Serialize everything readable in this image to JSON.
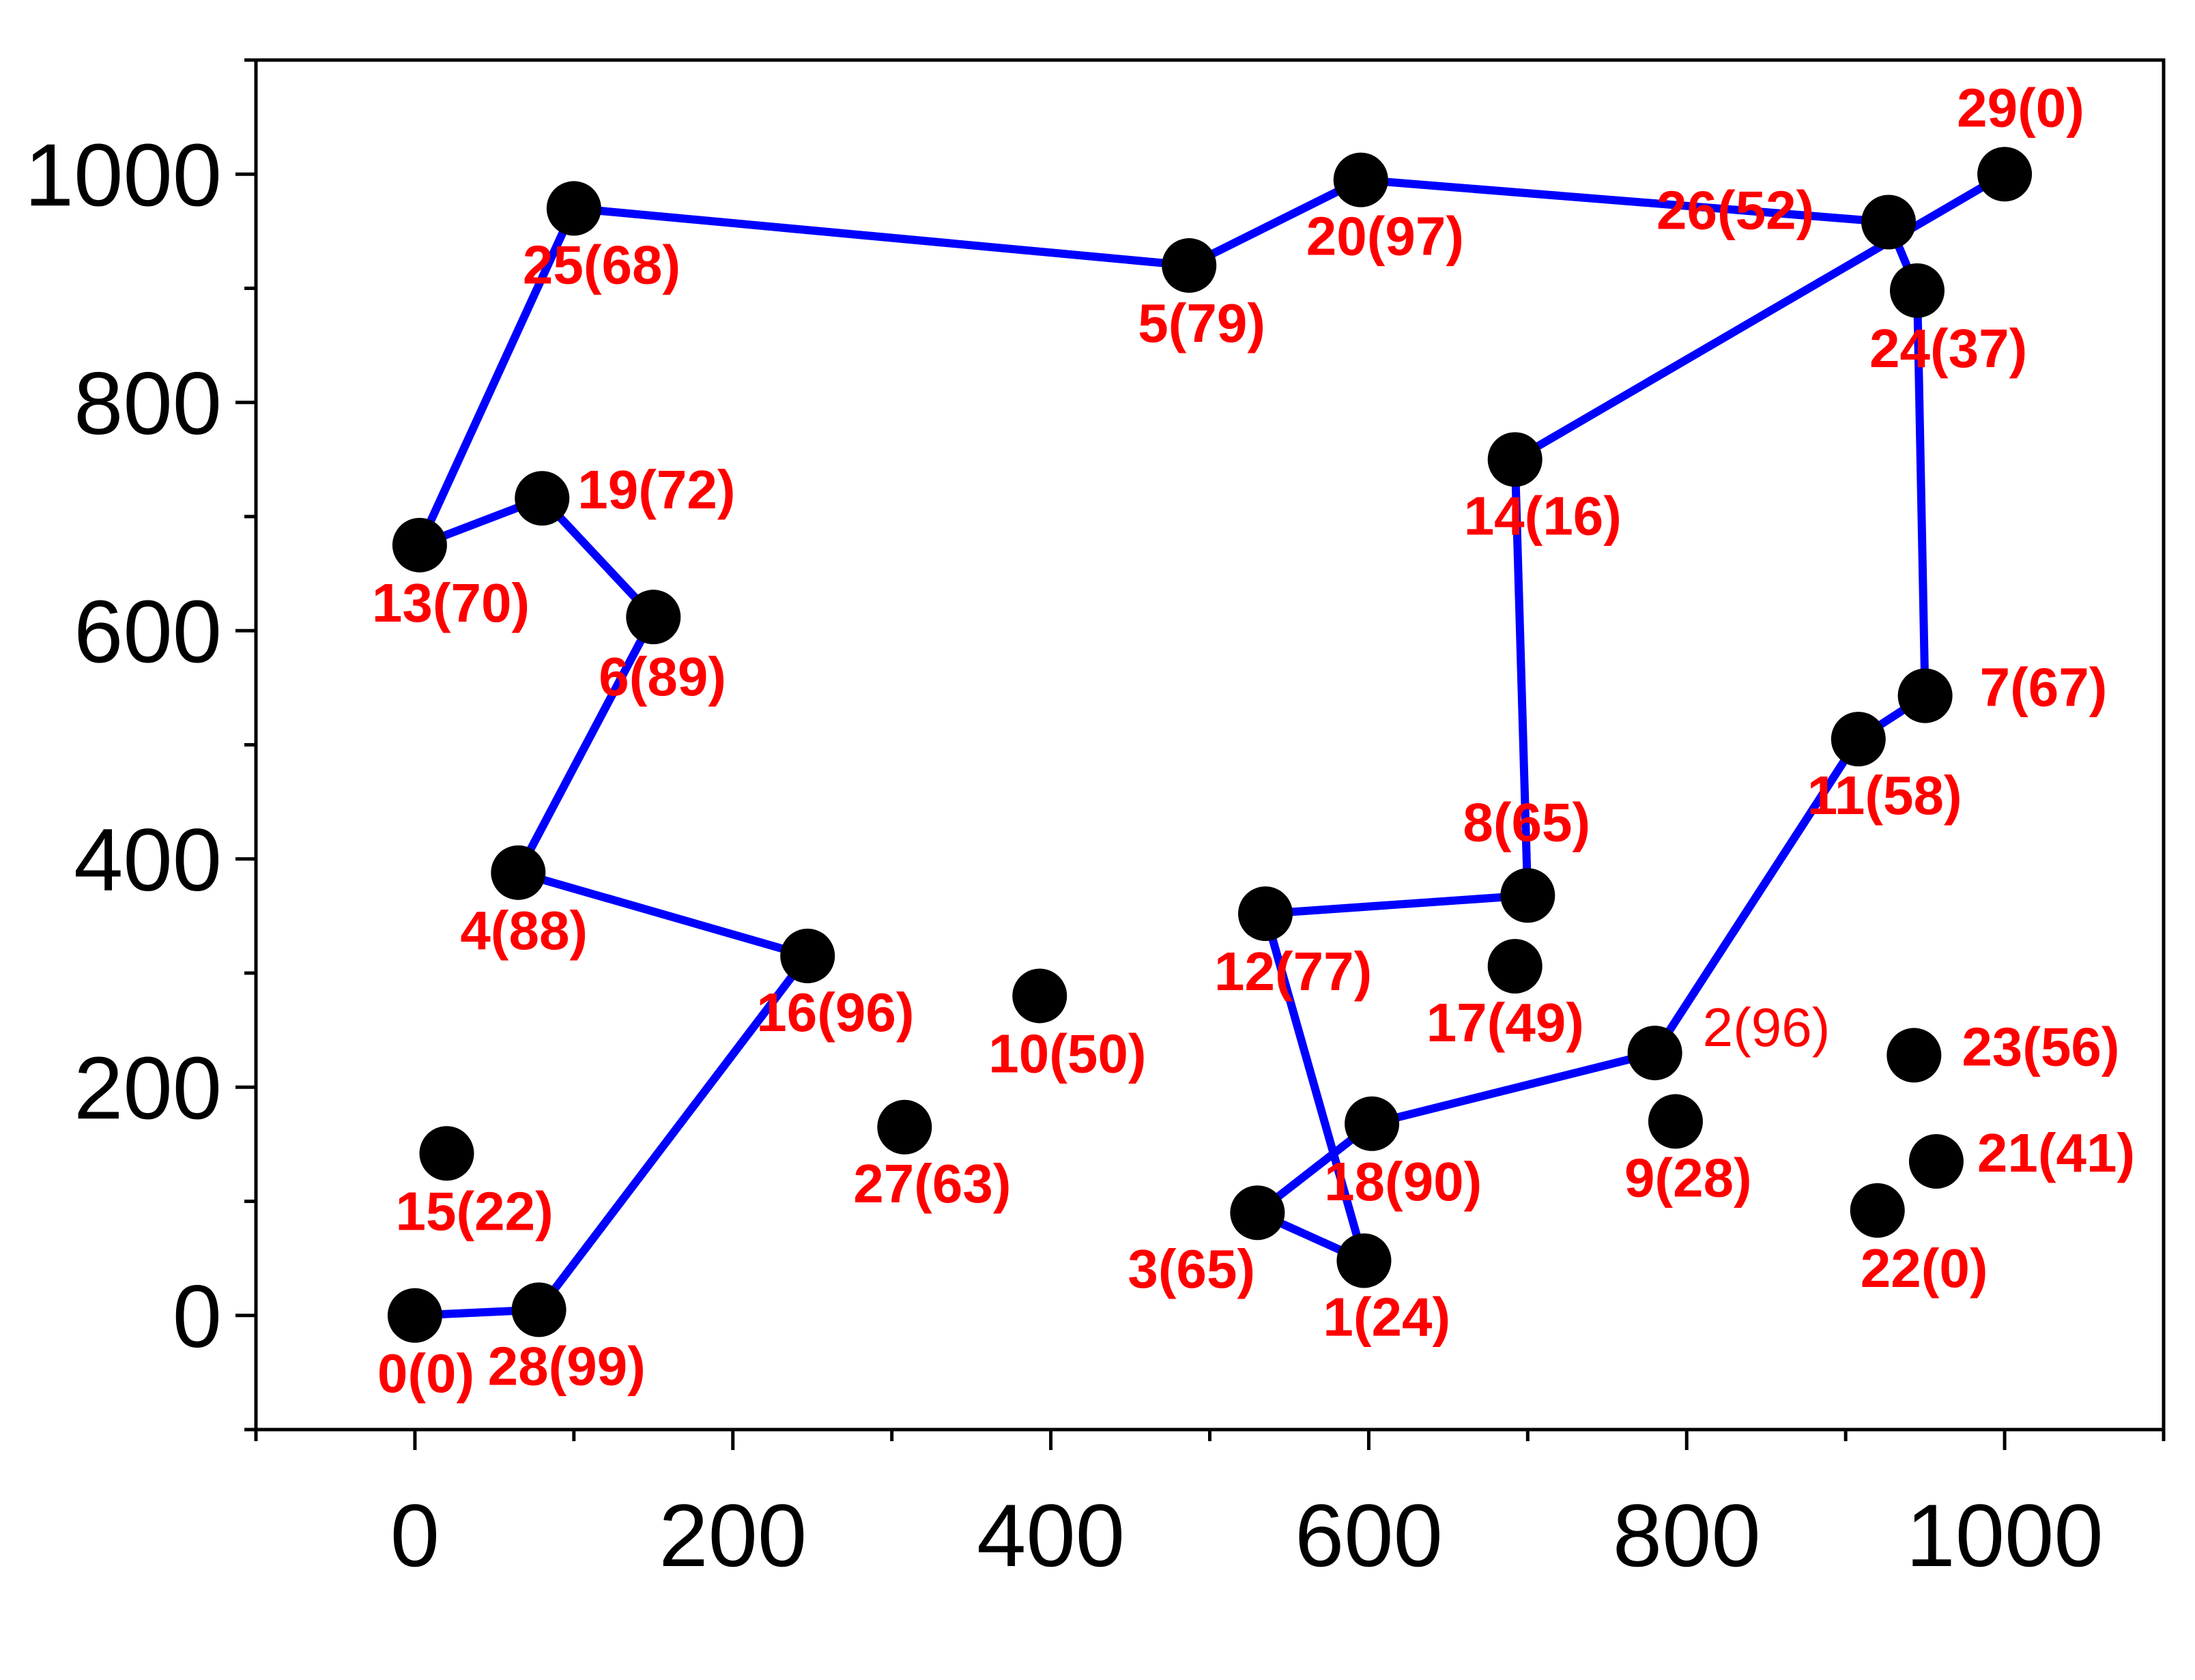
{
  "chart_data": {
    "type": "scatter",
    "xlim": [
      -100,
      1100
    ],
    "ylim": [
      -100,
      1100
    ],
    "x_ticks": [
      0,
      200,
      400,
      600,
      800,
      1000
    ],
    "y_ticks": [
      0,
      200,
      400,
      600,
      800,
      1000
    ],
    "x_tick_labels": [
      "0",
      "200",
      "400",
      "600",
      "800",
      "1000"
    ],
    "y_tick_labels": [
      "0",
      "200",
      "400",
      "600",
      "800",
      "1000"
    ],
    "grid": false,
    "colors": {
      "points": "#000000",
      "route": "#0000ff",
      "labels": "#ff0000",
      "axes": "#000000"
    },
    "points": [
      {
        "id": 0,
        "label": "0(0)",
        "x": 0,
        "y": 0
      },
      {
        "id": 1,
        "label": "1(24)",
        "x": 597,
        "y": 48
      },
      {
        "id": 2,
        "label": "2(96)",
        "x": 780,
        "y": 230,
        "bold": false
      },
      {
        "id": 3,
        "label": "3(65)",
        "x": 530,
        "y": 90
      },
      {
        "id": 4,
        "label": "4(88)",
        "x": 65,
        "y": 388
      },
      {
        "id": 5,
        "label": "5(79)",
        "x": 487,
        "y": 920
      },
      {
        "id": 6,
        "label": "6(89)",
        "x": 150,
        "y": 612
      },
      {
        "id": 7,
        "label": "7(67)",
        "x": 950,
        "y": 543
      },
      {
        "id": 8,
        "label": "8(65)",
        "x": 700,
        "y": 368
      },
      {
        "id": 9,
        "label": "9(28)",
        "x": 793,
        "y": 170
      },
      {
        "id": 10,
        "label": "10(50)",
        "x": 393,
        "y": 280
      },
      {
        "id": 11,
        "label": "11(58)",
        "x": 908,
        "y": 505
      },
      {
        "id": 12,
        "label": "12(77)",
        "x": 535,
        "y": 352
      },
      {
        "id": 13,
        "label": "13(70)",
        "x": 3,
        "y": 675
      },
      {
        "id": 14,
        "label": "14(16)",
        "x": 692,
        "y": 750
      },
      {
        "id": 15,
        "label": "15(22)",
        "x": 20,
        "y": 142
      },
      {
        "id": 16,
        "label": "16(96)",
        "x": 247,
        "y": 315
      },
      {
        "id": 17,
        "label": "17(49)",
        "x": 692,
        "y": 306
      },
      {
        "id": 18,
        "label": "18(90)",
        "x": 602,
        "y": 168
      },
      {
        "id": 19,
        "label": "19(72)",
        "x": 80,
        "y": 716
      },
      {
        "id": 20,
        "label": "20(97)",
        "x": 595,
        "y": 995
      },
      {
        "id": 21,
        "label": "21(41)",
        "x": 957,
        "y": 135
      },
      {
        "id": 22,
        "label": "22(0)",
        "x": 920,
        "y": 92
      },
      {
        "id": 23,
        "label": "23(56)",
        "x": 943,
        "y": 228
      },
      {
        "id": 24,
        "label": "24(37)",
        "x": 945,
        "y": 898
      },
      {
        "id": 25,
        "label": "25(68)",
        "x": 100,
        "y": 970
      },
      {
        "id": 26,
        "label": "26(52)",
        "x": 927,
        "y": 958
      },
      {
        "id": 27,
        "label": "27(63)",
        "x": 308,
        "y": 165
      },
      {
        "id": 28,
        "label": "28(99)",
        "x": 78,
        "y": 5
      },
      {
        "id": 29,
        "label": "29(0)",
        "x": 1000,
        "y": 1000
      }
    ],
    "route": [
      0,
      28,
      16,
      4,
      6,
      19,
      13,
      25,
      5,
      20,
      26,
      24,
      7,
      11,
      2,
      18,
      3,
      1,
      12,
      8,
      14,
      29
    ]
  }
}
